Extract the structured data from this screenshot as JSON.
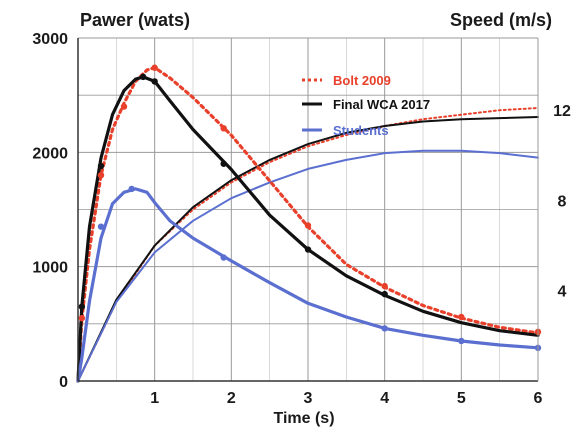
{
  "chart_data": {
    "type": "line",
    "ylabel_left": "Pawer (wats)",
    "ylabel_right": "Speed (m/s)",
    "xlabel": "Time (s)",
    "xlim": [
      0,
      6
    ],
    "ylim_left": [
      0,
      3000
    ],
    "ylim_right": [
      0,
      15.2
    ],
    "x_ticks": [
      "1",
      "2",
      "3",
      "4",
      "5",
      "6"
    ],
    "y_ticks_left": [
      "0",
      "1000",
      "2000",
      "3000"
    ],
    "y_ticks_right": [
      "4",
      "8",
      "12"
    ],
    "grid": true,
    "legend_position": "top-right",
    "series": [
      {
        "name": "Bolt 2009",
        "axis": "left",
        "style": "dotted",
        "color": "#e8402a",
        "points": [
          [
            0,
            0
          ],
          [
            0.05,
            530
          ],
          [
            0.15,
            1150
          ],
          [
            0.3,
            1800
          ],
          [
            0.45,
            2200
          ],
          [
            0.6,
            2430
          ],
          [
            0.75,
            2620
          ],
          [
            0.9,
            2720
          ],
          [
            1.0,
            2740
          ],
          [
            1.2,
            2650
          ],
          [
            1.5,
            2480
          ],
          [
            2.0,
            2150
          ],
          [
            2.5,
            1750
          ],
          [
            3.0,
            1350
          ],
          [
            3.5,
            1020
          ],
          [
            4.0,
            820
          ],
          [
            4.5,
            660
          ],
          [
            5.0,
            550
          ],
          [
            5.5,
            470
          ],
          [
            6.0,
            420
          ]
        ],
        "markers": [
          [
            0.05,
            550
          ],
          [
            0.3,
            1800
          ],
          [
            0.6,
            2400
          ],
          [
            1.0,
            2740
          ],
          [
            1.9,
            2210
          ],
          [
            3.0,
            1360
          ],
          [
            4.0,
            830
          ],
          [
            5.0,
            560
          ],
          [
            6.0,
            430
          ]
        ]
      },
      {
        "name": "Final WCA 2017",
        "axis": "left",
        "style": "solid",
        "color": "#111111",
        "points": [
          [
            0,
            0
          ],
          [
            0.05,
            650
          ],
          [
            0.15,
            1350
          ],
          [
            0.3,
            1950
          ],
          [
            0.45,
            2330
          ],
          [
            0.6,
            2540
          ],
          [
            0.75,
            2640
          ],
          [
            0.85,
            2660
          ],
          [
            1.0,
            2620
          ],
          [
            1.2,
            2450
          ],
          [
            1.5,
            2200
          ],
          [
            2.0,
            1850
          ],
          [
            2.5,
            1450
          ],
          [
            3.0,
            1150
          ],
          [
            3.5,
            920
          ],
          [
            4.0,
            750
          ],
          [
            4.5,
            610
          ],
          [
            5.0,
            510
          ],
          [
            5.5,
            440
          ],
          [
            6.0,
            400
          ]
        ],
        "markers": [
          [
            0.05,
            650
          ],
          [
            0.3,
            1880
          ],
          [
            0.85,
            2660
          ],
          [
            1.0,
            2620
          ],
          [
            1.9,
            1900
          ],
          [
            3.0,
            1150
          ],
          [
            4.0,
            760
          ]
        ]
      },
      {
        "name": "Students",
        "axis": "left",
        "style": "solid",
        "color": "#5b6fd0",
        "points": [
          [
            0,
            0
          ],
          [
            0.05,
            200
          ],
          [
            0.15,
            700
          ],
          [
            0.3,
            1250
          ],
          [
            0.45,
            1550
          ],
          [
            0.6,
            1650
          ],
          [
            0.75,
            1680
          ],
          [
            0.9,
            1650
          ],
          [
            1.0,
            1560
          ],
          [
            1.2,
            1400
          ],
          [
            1.5,
            1250
          ],
          [
            2.0,
            1050
          ],
          [
            2.5,
            860
          ],
          [
            3.0,
            680
          ],
          [
            3.5,
            560
          ],
          [
            4.0,
            460
          ],
          [
            4.5,
            400
          ],
          [
            5.0,
            350
          ],
          [
            5.5,
            315
          ],
          [
            6.0,
            290
          ]
        ],
        "markers": [
          [
            0.3,
            1350
          ],
          [
            0.7,
            1680
          ],
          [
            1.9,
            1080
          ],
          [
            4.0,
            460
          ],
          [
            5.0,
            350
          ],
          [
            6.0,
            290
          ]
        ]
      },
      {
        "name": "Bolt 2009 speed",
        "axis": "right",
        "style": "dotted",
        "color": "#e8402a",
        "points": [
          [
            0,
            0
          ],
          [
            0.5,
            3.5
          ],
          [
            1,
            6.0
          ],
          [
            1.5,
            7.6
          ],
          [
            2,
            8.8
          ],
          [
            2.5,
            9.7
          ],
          [
            3,
            10.4
          ],
          [
            3.5,
            10.9
          ],
          [
            4,
            11.3
          ],
          [
            4.5,
            11.6
          ],
          [
            5,
            11.8
          ],
          [
            5.5,
            12.0
          ],
          [
            6,
            12.1
          ]
        ]
      },
      {
        "name": "Final WCA 2017 speed",
        "axis": "right",
        "style": "solid",
        "color": "#111111",
        "points": [
          [
            0,
            0
          ],
          [
            0.5,
            3.6
          ],
          [
            1,
            6.0
          ],
          [
            1.5,
            7.7
          ],
          [
            2,
            8.9
          ],
          [
            2.5,
            9.8
          ],
          [
            3,
            10.5
          ],
          [
            3.5,
            11.0
          ],
          [
            4,
            11.3
          ],
          [
            4.5,
            11.5
          ],
          [
            5,
            11.6
          ],
          [
            5.5,
            11.65
          ],
          [
            6,
            11.7
          ]
        ]
      },
      {
        "name": "Students speed",
        "axis": "right",
        "style": "solid",
        "color": "#5b6fd0",
        "points": [
          [
            0,
            0
          ],
          [
            0.5,
            3.5
          ],
          [
            1,
            5.7
          ],
          [
            1.5,
            7.1
          ],
          [
            2,
            8.1
          ],
          [
            2.5,
            8.8
          ],
          [
            3,
            9.4
          ],
          [
            3.5,
            9.8
          ],
          [
            4,
            10.1
          ],
          [
            4.5,
            10.2
          ],
          [
            5,
            10.2
          ],
          [
            5.5,
            10.1
          ],
          [
            6,
            9.9
          ]
        ]
      }
    ]
  },
  "colors": {
    "bolt": "#e8402a",
    "wca": "#111111",
    "students": "#5b6fd0",
    "grid": "#9a9a9a",
    "axis": "#333333"
  }
}
